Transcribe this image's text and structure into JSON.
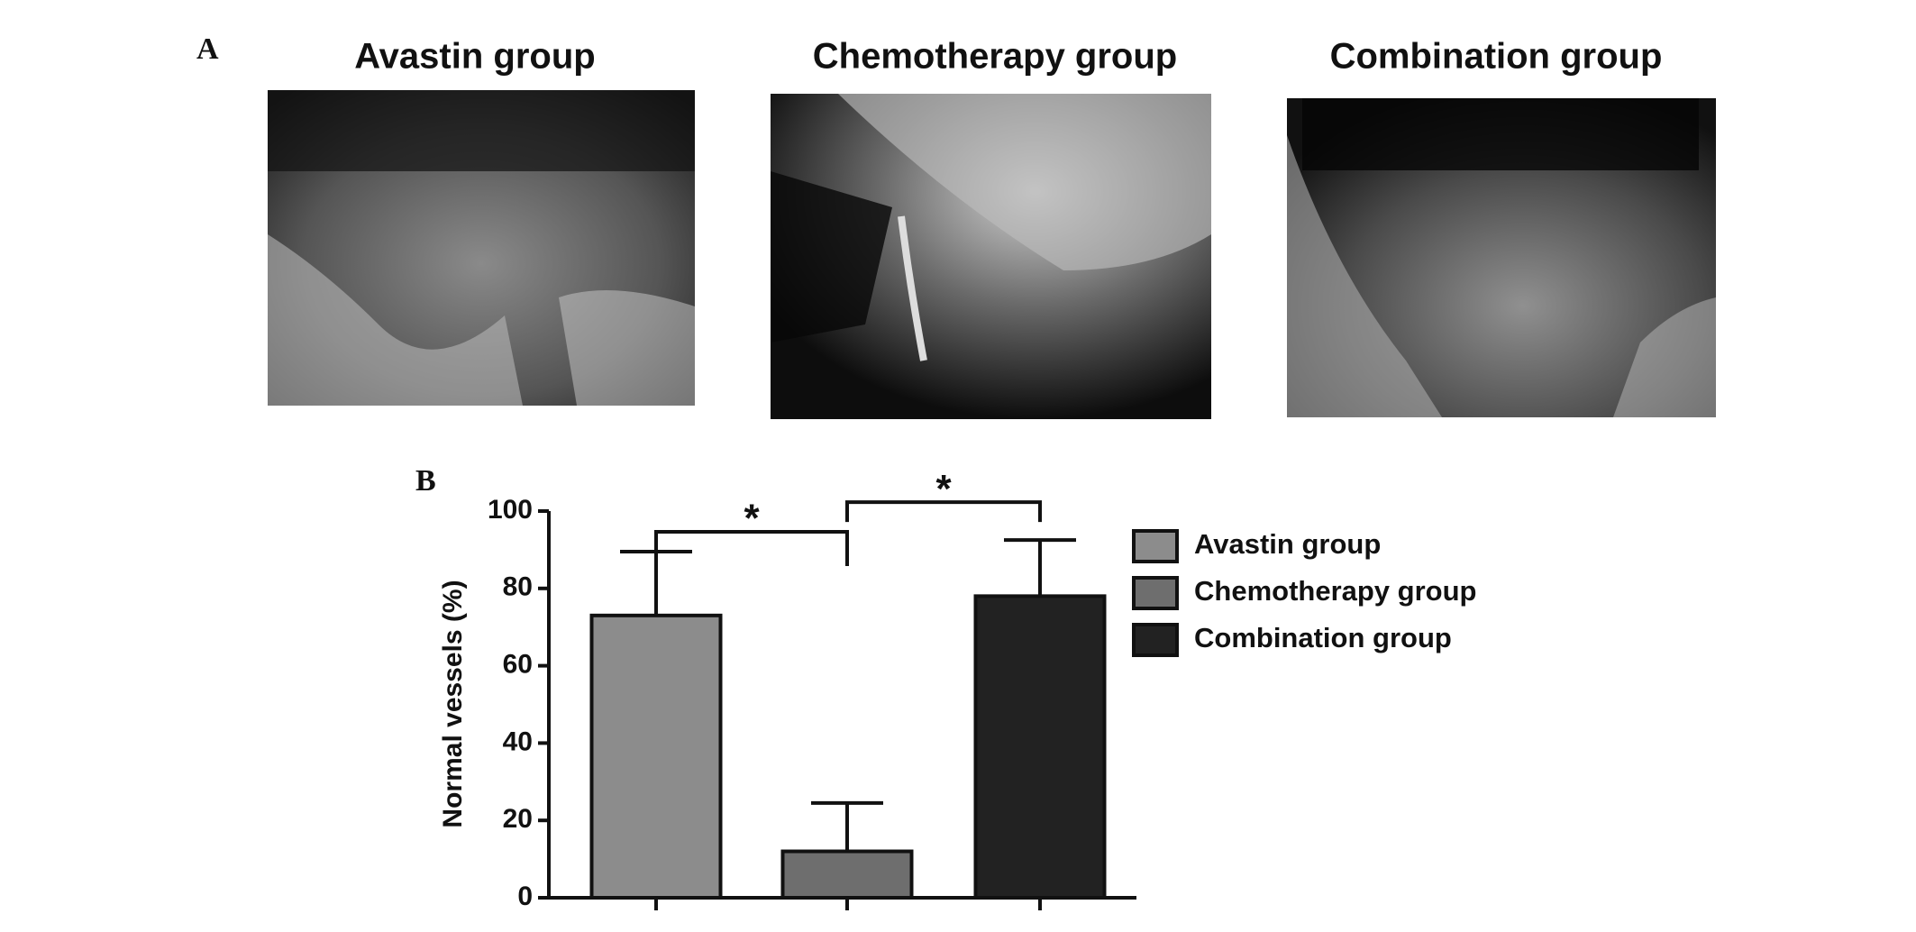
{
  "panel_a": {
    "label": "A",
    "titles": [
      "Avastin group",
      "Chemotherapy group",
      "Combination group"
    ]
  },
  "chart_data": {
    "type": "bar",
    "panel_label": "B",
    "y_label": "Normal vessels (%)",
    "categories": [
      null,
      null,
      null
    ],
    "values": [
      73,
      12,
      78
    ],
    "errors": [
      16.5,
      12.5,
      14.5
    ],
    "colors": [
      "#8c8c8c",
      "#6e6e6e",
      "#222222"
    ],
    "legend": [
      "Avastin group",
      "Chemotherapy group",
      "Combination group"
    ],
    "significance_labels": [
      "*",
      "*"
    ],
    "ylim": [
      0,
      100
    ],
    "yticks": [
      0,
      20,
      40,
      60,
      80,
      100
    ],
    "grid": false
  }
}
